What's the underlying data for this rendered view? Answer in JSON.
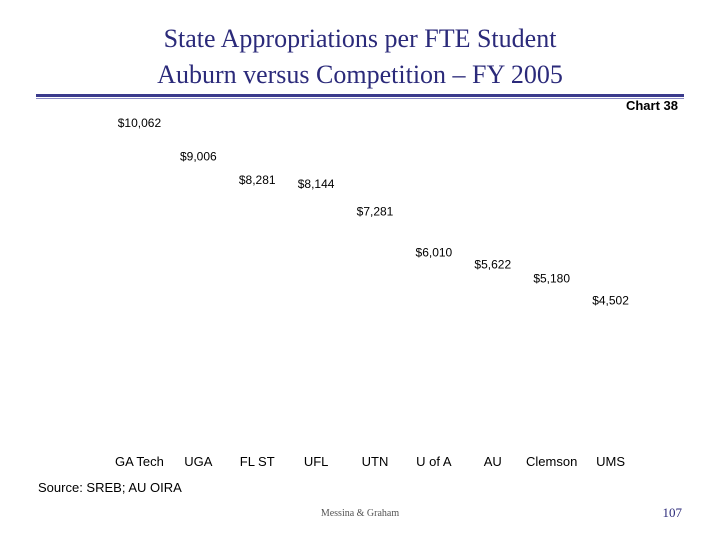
{
  "slide": {
    "title_line_1": "State Appropriations per FTE Student",
    "title_line_2": "Auburn versus Competition – FY 2005",
    "chart_number": "Chart 38",
    "source": "Source:  SREB; AU OIRA",
    "footer": "Messina & Graham",
    "page_number": "107"
  },
  "chart_data": {
    "type": "bar",
    "title": "State Appropriations per FTE Student",
    "subtitle": "Auburn versus Competition – FY 2005",
    "categories": [
      "GA Tech",
      "UGA",
      "FL ST",
      "UFL",
      "UTN",
      "U of A",
      "AU",
      "Clemson",
      "UMS"
    ],
    "values": [
      10062,
      9006,
      8281,
      8144,
      7281,
      6010,
      5622,
      5180,
      4502
    ],
    "data_labels": [
      "$10,062",
      "$9,006",
      "$8,281",
      "$8,144",
      "$7,281",
      "$6,010",
      "$5,622",
      "$5,180",
      "$4,502"
    ],
    "xlabel": "",
    "ylabel": "",
    "ylim": [
      0,
      10062
    ],
    "grid": false,
    "legend": "none"
  }
}
